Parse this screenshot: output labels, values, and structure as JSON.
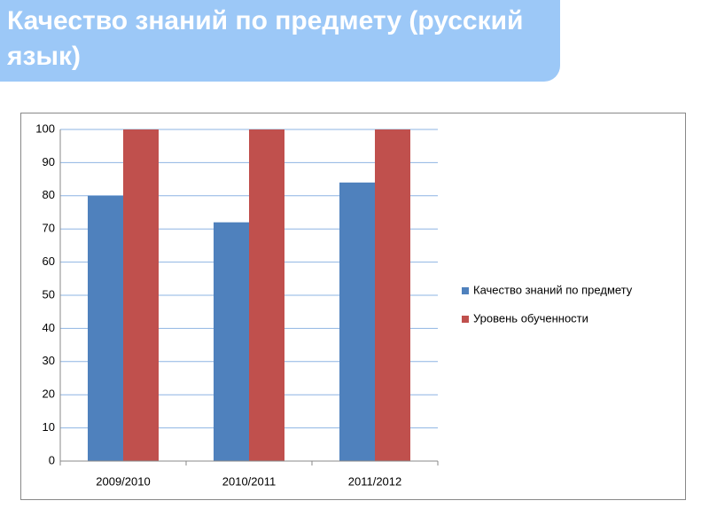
{
  "chart_data": {
    "type": "bar",
    "title": "Качество знаний по предмету (русский язык)",
    "categories": [
      "2009/2010",
      "2010/2011",
      "2011/2012"
    ],
    "series": [
      {
        "name": "Качество знаний по предмету",
        "color": "#4f81bd",
        "values": [
          80,
          72,
          84
        ]
      },
      {
        "name": "Уровень обученности",
        "color": "#c0504d",
        "values": [
          100,
          100,
          100
        ]
      }
    ],
    "ylim": [
      0,
      100
    ],
    "yticks": [
      0,
      10,
      20,
      30,
      40,
      50,
      60,
      70,
      80,
      90,
      100
    ],
    "grid": true,
    "legend": "right"
  }
}
